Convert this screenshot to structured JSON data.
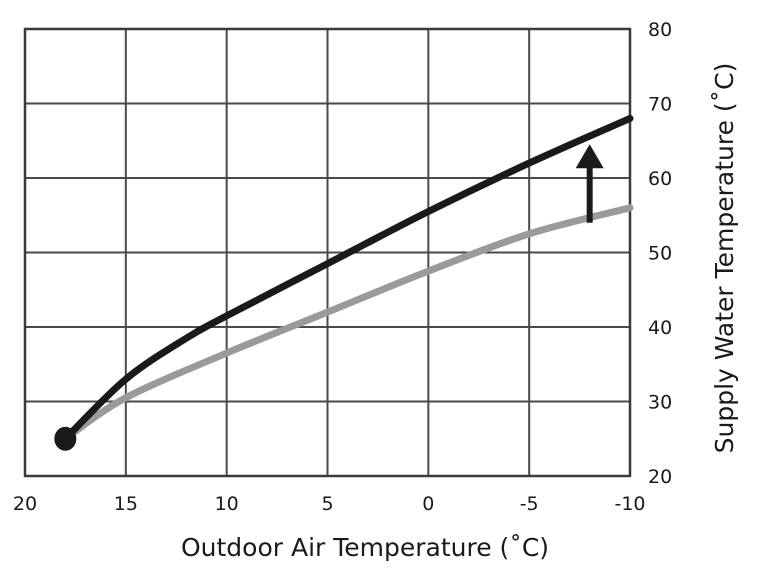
{
  "chart_data": {
    "type": "line",
    "title": "",
    "xlabel": "Outdoor Air Temperature (˚C)",
    "ylabel": "Supply Water Temperature (˚C)",
    "x_ticks": [
      "20",
      "15",
      "10",
      "5",
      "0",
      "-5",
      "-10"
    ],
    "y_ticks": [
      "20",
      "30",
      "40",
      "50",
      "60",
      "70",
      "80"
    ],
    "xlim": [
      20,
      -10
    ],
    "ylim": [
      20,
      80
    ],
    "x_axis_reversed": true,
    "y_axis_position": "right",
    "grid": true,
    "series": [
      {
        "color": "#1a1a1a",
        "points": [
          [
            18,
            25
          ],
          [
            15,
            33
          ],
          [
            12,
            38.5
          ],
          [
            10,
            41.5
          ],
          [
            5,
            48.5
          ],
          [
            0,
            55.5
          ],
          [
            -5,
            62
          ],
          [
            -10,
            68
          ]
        ]
      },
      {
        "color": "#9a9a9a",
        "points": [
          [
            18,
            25
          ],
          [
            15,
            30.5
          ],
          [
            10,
            36.5
          ],
          [
            5,
            42
          ],
          [
            0,
            47.5
          ],
          [
            -5,
            52.5
          ],
          [
            -10,
            56
          ]
        ]
      }
    ],
    "start_point": {
      "x": 18,
      "y": 25
    },
    "annotations": [
      {
        "type": "arrow",
        "direction": "up",
        "x": -8,
        "from_y": 54,
        "to_y": 64
      }
    ]
  }
}
